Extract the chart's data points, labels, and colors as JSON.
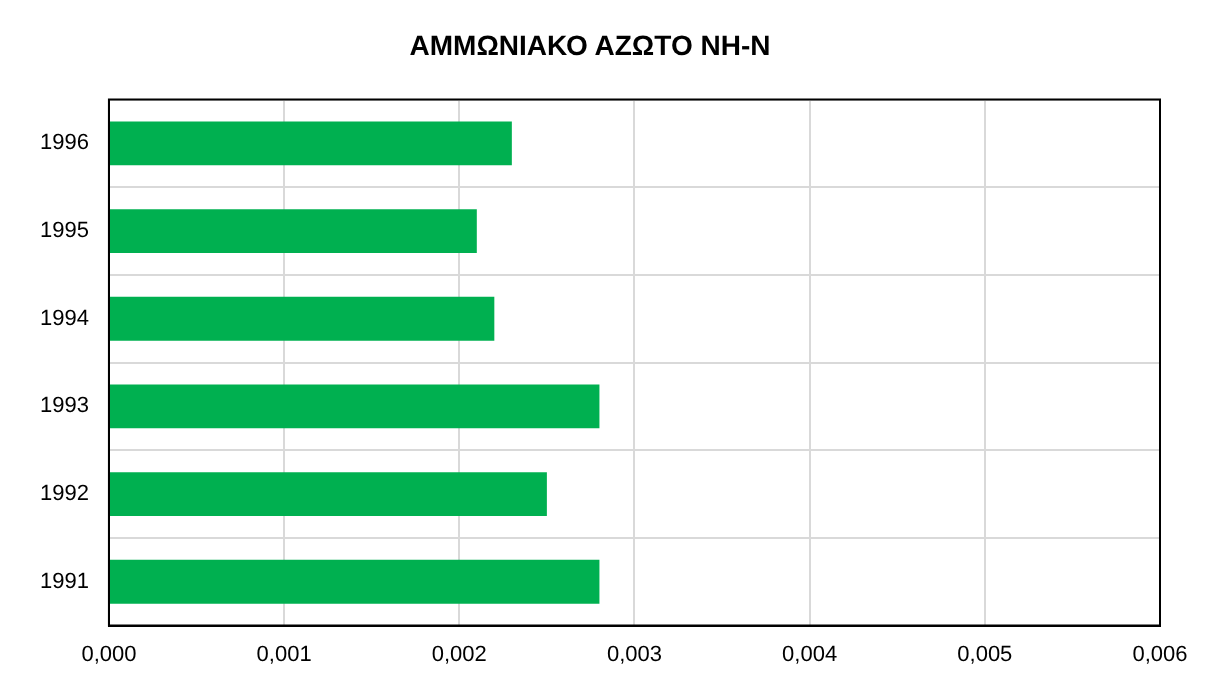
{
  "chart_data": {
    "type": "bar",
    "orientation": "horizontal",
    "title": "ΑΜΜΩΝΙΑΚΟ ΑΖΩΤΟ NH-N",
    "categories": [
      "1996",
      "1995",
      "1994",
      "1993",
      "1992",
      "1991"
    ],
    "values": [
      0.0023,
      0.0021,
      0.0022,
      0.0028,
      0.0025,
      0.0028
    ],
    "color": "#00b050",
    "xlim": [
      0,
      0.006
    ],
    "xticks": [
      {
        "value": 0,
        "label": "0,000"
      },
      {
        "value": 0.001,
        "label": "0,001"
      },
      {
        "value": 0.002,
        "label": "0,002"
      },
      {
        "value": 0.003,
        "label": "0,003"
      },
      {
        "value": 0.004,
        "label": "0,004"
      },
      {
        "value": 0.005,
        "label": "0,005"
      },
      {
        "value": 0.006,
        "label": "0,006"
      }
    ],
    "grid": true,
    "legend": false
  }
}
